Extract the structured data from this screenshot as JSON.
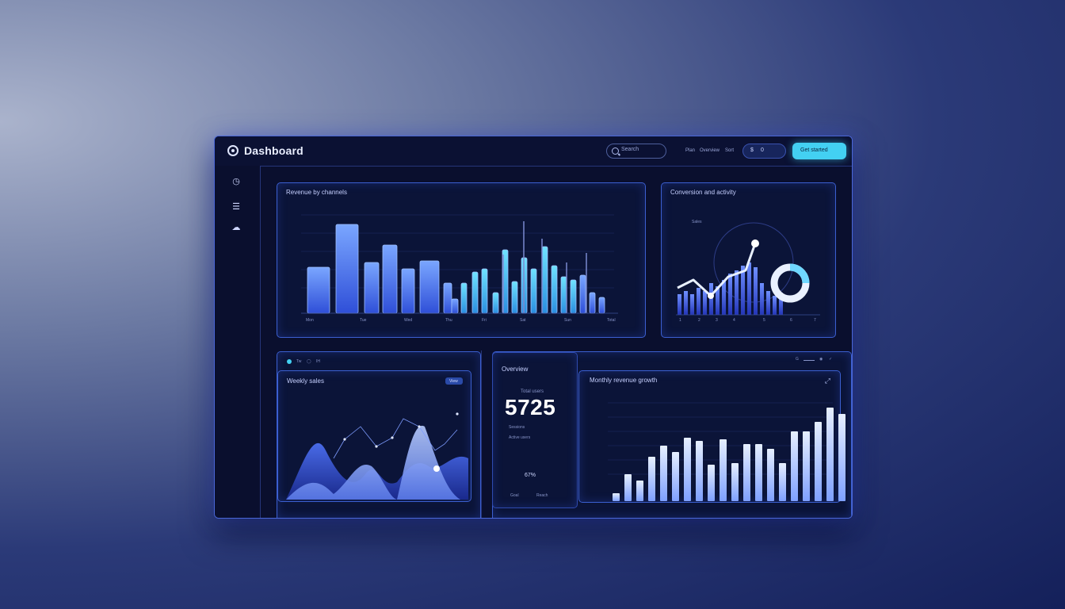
{
  "app": {
    "title": "Dashboard"
  },
  "header": {
    "search_placeholder": "Search",
    "links": [
      "Plan",
      "Overview",
      "Sort"
    ],
    "pill": [
      "$",
      "0"
    ],
    "cta_label": "Get started"
  },
  "sidebar": {
    "items": [
      {
        "icon": "clock-icon"
      },
      {
        "icon": "table-icon"
      },
      {
        "icon": "cloud-upload-icon"
      }
    ]
  },
  "panels": {
    "main_chart": {
      "title": "Revenue by channels",
      "x_labels": [
        "Mon",
        "Tue",
        "Wed",
        "Thu",
        "Fri",
        "Sat",
        "Sun",
        "Total"
      ]
    },
    "right_chart": {
      "title": "Conversion and activity",
      "legend": "Sales",
      "x_labels": [
        "1",
        "2",
        "3",
        "4",
        "5",
        "6",
        "7"
      ]
    },
    "area_chart": {
      "title": "Weekly sales",
      "tab_label": "View"
    },
    "metric": {
      "section_title": "Overview",
      "label": "Total users",
      "value": "5725",
      "sub1": "Sessions",
      "sub2": "Active users",
      "small_value": "67%",
      "bottom_left": "Goal",
      "bottom_right": "Reach"
    },
    "bottom_bar": {
      "title": "Monthly revenue growth"
    }
  },
  "colors": {
    "accent": "#43d0f2",
    "primary": "#3d6cf0",
    "border": "#3b5fd0"
  }
}
